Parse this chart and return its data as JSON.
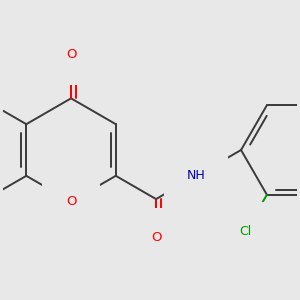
{
  "bg_color": "#e8e8e8",
  "bond_color": "#3a3a3a",
  "bond_width": 1.4,
  "atom_colors": {
    "O": "#ff0000",
    "N": "#0000bb",
    "Cl": "#009900",
    "C": "#3a3a3a"
  },
  "font_size": 9.0,
  "figsize": [
    3.0,
    3.0
  ],
  "dpi": 100,
  "xlim": [
    -2.5,
    3.2
  ],
  "ylim": [
    -2.5,
    2.5
  ]
}
